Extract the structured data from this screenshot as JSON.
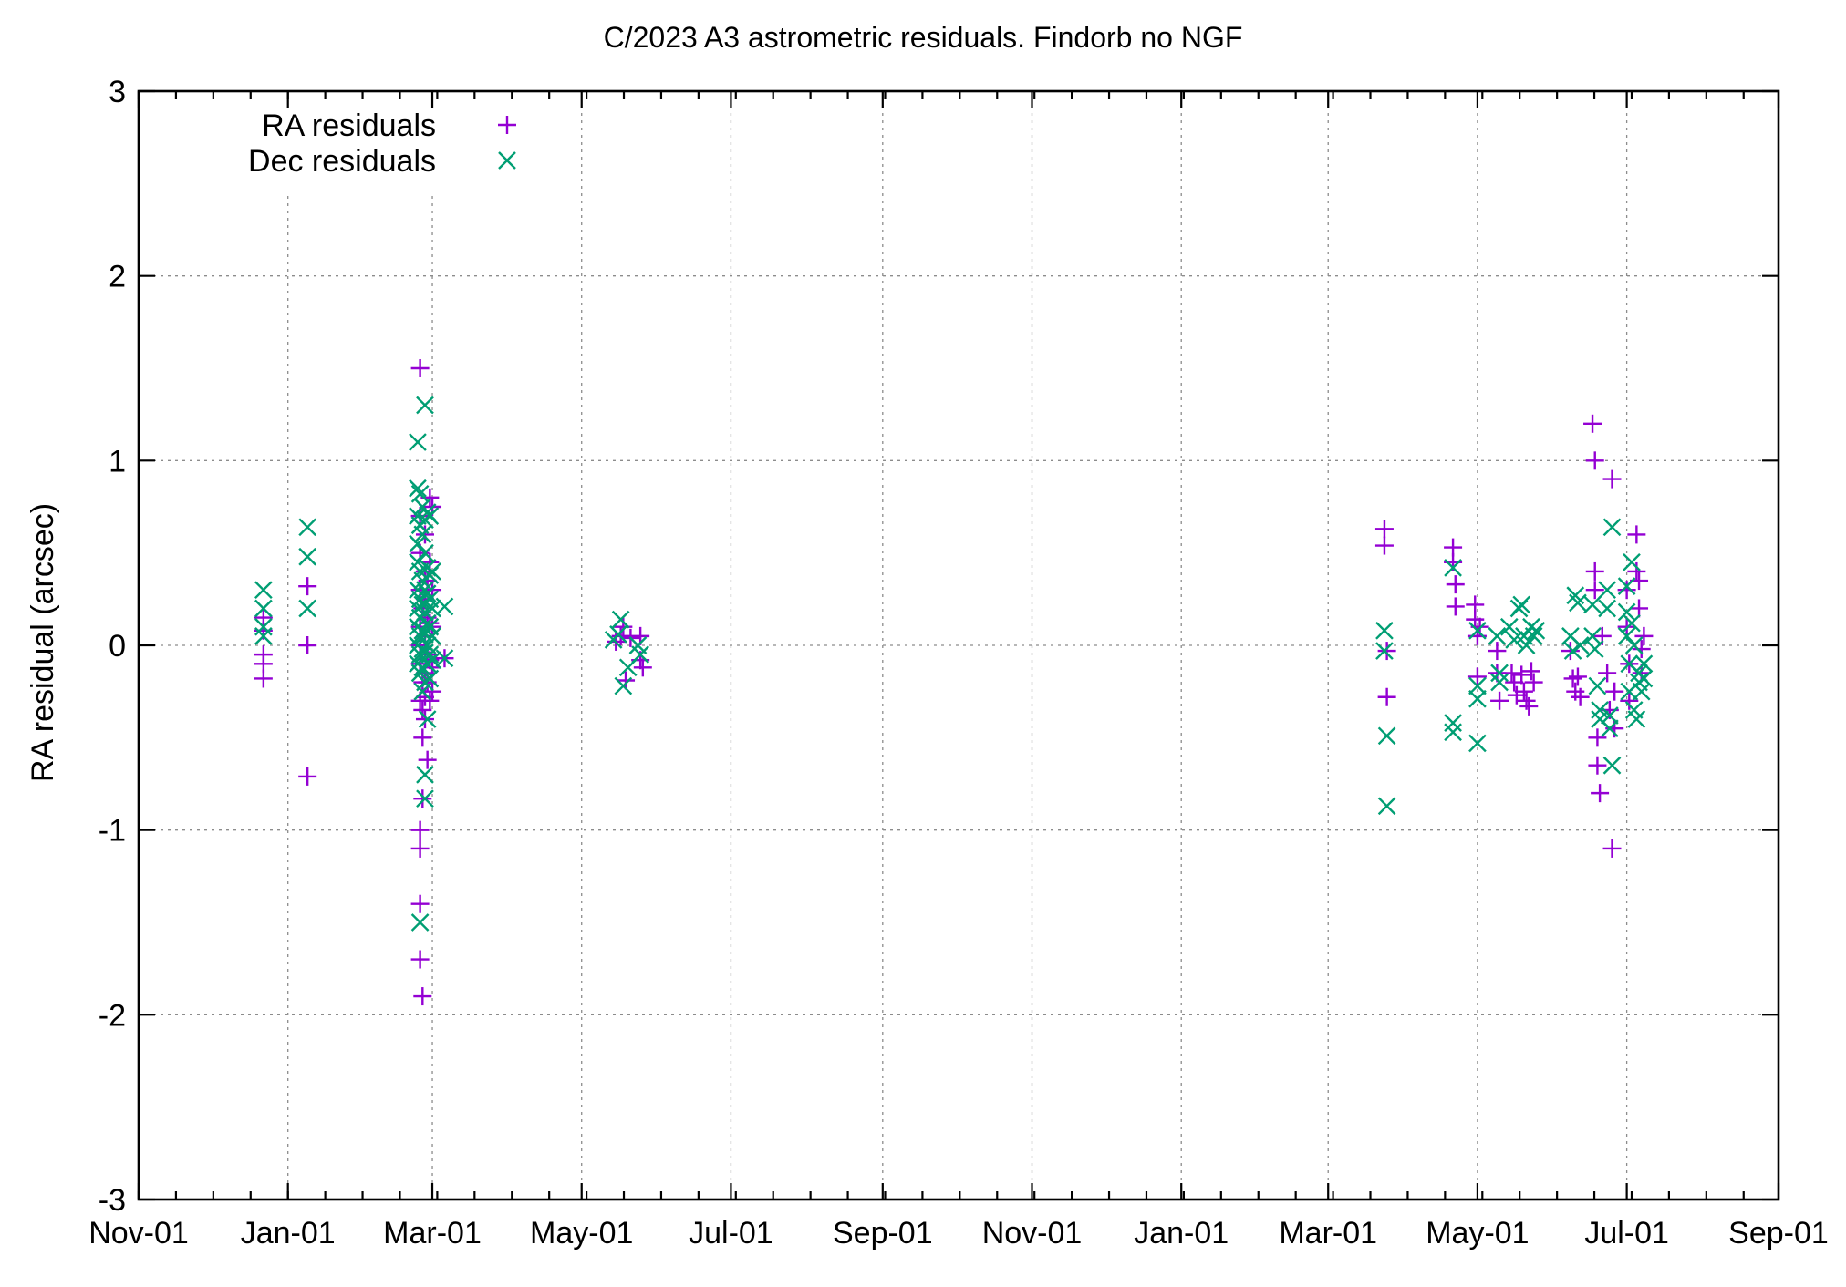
{
  "chart_data": {
    "type": "scatter",
    "title": "C/2023 A3 astrometric residuals. Findorb no NGF",
    "xlabel": "",
    "ylabel": "RA residual (arcsec)",
    "ylim": [
      -3,
      3
    ],
    "yticks": [
      "-3",
      "-2",
      "-1",
      "0",
      "1",
      "2",
      "3"
    ],
    "x_range_days": [
      0,
      670
    ],
    "xticks": [
      {
        "label": "Nov-01",
        "day": 0
      },
      {
        "label": "Jan-01",
        "day": 61
      },
      {
        "label": "Mar-01",
        "day": 120
      },
      {
        "label": "May-01",
        "day": 181
      },
      {
        "label": "Jul-01",
        "day": 242
      },
      {
        "label": "Sep-01",
        "day": 304
      },
      {
        "label": "Nov-01",
        "day": 365
      },
      {
        "label": "Jan-01",
        "day": 426
      },
      {
        "label": "Mar-01",
        "day": 486
      },
      {
        "label": "May-01",
        "day": 547
      },
      {
        "label": "Jul-01",
        "day": 608
      },
      {
        "label": "Sep-01",
        "day": 670
      }
    ],
    "grid": true,
    "legend_position": "top-left",
    "series": [
      {
        "name": "RA residuals",
        "marker": "plus",
        "color": "#9400d3",
        "points": [
          [
            51,
            0.15
          ],
          [
            51,
            0.08
          ],
          [
            51,
            -0.05
          ],
          [
            51,
            -0.1
          ],
          [
            51,
            -0.18
          ],
          [
            69,
            0.32
          ],
          [
            69,
            0.0
          ],
          [
            69,
            -0.71
          ],
          [
            115,
            1.5
          ],
          [
            115,
            0.7
          ],
          [
            115,
            0.5
          ],
          [
            115,
            0.3
          ],
          [
            115,
            0.1
          ],
          [
            115,
            0.0
          ],
          [
            115,
            -0.1
          ],
          [
            115,
            -0.3
          ],
          [
            115,
            -1.0
          ],
          [
            115,
            -1.1
          ],
          [
            115,
            -1.4
          ],
          [
            115,
            -1.7
          ],
          [
            116,
            0.2
          ],
          [
            116,
            -0.2
          ],
          [
            116,
            -0.35
          ],
          [
            116,
            -0.5
          ],
          [
            116,
            -0.83
          ],
          [
            116,
            -1.9
          ],
          [
            117,
            0.6
          ],
          [
            117,
            0.4
          ],
          [
            117,
            0.25
          ],
          [
            117,
            0.05
          ],
          [
            117,
            -0.15
          ],
          [
            117,
            -0.28
          ],
          [
            117,
            -0.4
          ],
          [
            118,
            0.35
          ],
          [
            118,
            0.15
          ],
          [
            118,
            -0.05
          ],
          [
            118,
            -0.2
          ],
          [
            118,
            -0.62
          ],
          [
            119,
            0.8
          ],
          [
            119,
            0.45
          ],
          [
            119,
            0.12
          ],
          [
            119,
            -0.08
          ],
          [
            119,
            -0.3
          ],
          [
            120,
            0.75
          ],
          [
            120,
            0.3
          ],
          [
            120,
            0.1
          ],
          [
            120,
            -0.12
          ],
          [
            120,
            -0.25
          ],
          [
            125,
            -0.07
          ],
          [
            195,
            0.02
          ],
          [
            197,
            0.05
          ],
          [
            198,
            0.1
          ],
          [
            199,
            -0.19
          ],
          [
            201,
            0.04
          ],
          [
            205,
            0.05
          ],
          [
            205,
            -0.08
          ],
          [
            206,
            -0.12
          ],
          [
            509,
            0.63
          ],
          [
            509,
            0.54
          ],
          [
            510,
            -0.03
          ],
          [
            510,
            -0.28
          ],
          [
            537,
            0.53
          ],
          [
            537,
            0.45
          ],
          [
            538,
            0.33
          ],
          [
            538,
            0.21
          ],
          [
            546,
            0.22
          ],
          [
            546,
            0.14
          ],
          [
            547,
            0.05
          ],
          [
            547,
            -0.17
          ],
          [
            548,
            0.1
          ],
          [
            555,
            -0.03
          ],
          [
            555,
            -0.15
          ],
          [
            556,
            -0.3
          ],
          [
            561,
            -0.15
          ],
          [
            562,
            -0.2
          ],
          [
            563,
            -0.27
          ],
          [
            565,
            -0.16
          ],
          [
            566,
            -0.25
          ],
          [
            567,
            -0.3
          ],
          [
            568,
            -0.33
          ],
          [
            569,
            -0.14
          ],
          [
            570,
            -0.2
          ],
          [
            585,
            -0.03
          ],
          [
            586,
            -0.18
          ],
          [
            587,
            -0.25
          ],
          [
            588,
            -0.17
          ],
          [
            589,
            -0.28
          ],
          [
            594,
            1.2
          ],
          [
            595,
            1.0
          ],
          [
            595,
            0.4
          ],
          [
            595,
            0.3
          ],
          [
            596,
            -0.5
          ],
          [
            596,
            -0.65
          ],
          [
            597,
            -0.8
          ],
          [
            598,
            0.05
          ],
          [
            600,
            -0.15
          ],
          [
            601,
            -0.35
          ],
          [
            602,
            -1.1
          ],
          [
            602,
            0.9
          ],
          [
            603,
            -0.25
          ],
          [
            603,
            -0.45
          ],
          [
            608,
            0.3
          ],
          [
            608,
            0.1
          ],
          [
            609,
            -0.1
          ],
          [
            609,
            -0.3
          ],
          [
            612,
            0.6
          ],
          [
            612,
            0.4
          ],
          [
            613,
            0.2
          ],
          [
            613,
            0.35
          ],
          [
            614,
            -0.02
          ],
          [
            614,
            -0.15
          ],
          [
            615,
            0.05
          ]
        ]
      },
      {
        "name": "Dec residuals",
        "marker": "cross",
        "color": "#009e73",
        "points": [
          [
            51,
            0.3
          ],
          [
            51,
            0.2
          ],
          [
            51,
            0.1
          ],
          [
            51,
            0.05
          ],
          [
            69,
            0.64
          ],
          [
            69,
            0.48
          ],
          [
            69,
            0.2
          ],
          [
            114,
            1.1
          ],
          [
            114,
            0.85
          ],
          [
            114,
            0.7
          ],
          [
            114,
            0.55
          ],
          [
            114,
            0.45
          ],
          [
            114,
            0.3
          ],
          [
            114,
            0.2
          ],
          [
            114,
            0.1
          ],
          [
            114,
            0.0
          ],
          [
            114,
            -0.1
          ],
          [
            115,
            0.82
          ],
          [
            115,
            0.65
          ],
          [
            115,
            0.4
          ],
          [
            115,
            0.25
          ],
          [
            115,
            0.15
          ],
          [
            115,
            0.05
          ],
          [
            115,
            -0.05
          ],
          [
            115,
            -0.15
          ],
          [
            115,
            -1.5
          ],
          [
            116,
            0.75
          ],
          [
            116,
            0.6
          ],
          [
            116,
            0.35
          ],
          [
            116,
            0.22
          ],
          [
            116,
            0.08
          ],
          [
            116,
            -0.02
          ],
          [
            116,
            -0.12
          ],
          [
            116,
            -0.25
          ],
          [
            117,
            1.3
          ],
          [
            117,
            0.68
          ],
          [
            117,
            0.5
          ],
          [
            117,
            0.3
          ],
          [
            117,
            0.18
          ],
          [
            117,
            0.06
          ],
          [
            117,
            -0.04
          ],
          [
            117,
            -0.2
          ],
          [
            117,
            -0.7
          ],
          [
            117,
            -0.83
          ],
          [
            118,
            0.72
          ],
          [
            118,
            0.42
          ],
          [
            118,
            0.28
          ],
          [
            118,
            0.12
          ],
          [
            118,
            0.0
          ],
          [
            118,
            -0.1
          ],
          [
            118,
            -0.4
          ],
          [
            119,
            0.7
          ],
          [
            119,
            0.38
          ],
          [
            119,
            0.25
          ],
          [
            119,
            0.1
          ],
          [
            119,
            -0.05
          ],
          [
            119,
            -0.18
          ],
          [
            120,
            0.4
          ],
          [
            120,
            0.2
          ],
          [
            120,
            0.05
          ],
          [
            120,
            -0.08
          ],
          [
            125,
            0.21
          ],
          [
            125,
            -0.07
          ],
          [
            194,
            0.03
          ],
          [
            196,
            0.06
          ],
          [
            197,
            0.14
          ],
          [
            198,
            -0.22
          ],
          [
            200,
            -0.12
          ],
          [
            204,
            0.0
          ],
          [
            205,
            -0.05
          ],
          [
            509,
            0.08
          ],
          [
            509,
            -0.03
          ],
          [
            510,
            -0.49
          ],
          [
            510,
            -0.87
          ],
          [
            537,
            0.42
          ],
          [
            537,
            -0.42
          ],
          [
            537,
            -0.47
          ],
          [
            547,
            0.08
          ],
          [
            547,
            -0.22
          ],
          [
            547,
            -0.29
          ],
          [
            547,
            -0.53
          ],
          [
            555,
            0.05
          ],
          [
            556,
            -0.15
          ],
          [
            556,
            -0.2
          ],
          [
            560,
            0.1
          ],
          [
            562,
            0.03
          ],
          [
            564,
            0.2
          ],
          [
            565,
            0.22
          ],
          [
            566,
            0.05
          ],
          [
            567,
            0.0
          ],
          [
            569,
            0.1
          ],
          [
            570,
            0.05
          ],
          [
            571,
            0.08
          ],
          [
            585,
            0.05
          ],
          [
            586,
            -0.03
          ],
          [
            587,
            0.27
          ],
          [
            588,
            0.23
          ],
          [
            589,
            0.0
          ],
          [
            594,
            0.22
          ],
          [
            594,
            0.05
          ],
          [
            595,
            -0.02
          ],
          [
            596,
            -0.22
          ],
          [
            597,
            -0.35
          ],
          [
            597,
            -0.4
          ],
          [
            600,
            0.3
          ],
          [
            600,
            0.2
          ],
          [
            601,
            -0.45
          ],
          [
            601,
            -0.38
          ],
          [
            602,
            0.64
          ],
          [
            602,
            -0.65
          ],
          [
            608,
            0.32
          ],
          [
            608,
            0.18
          ],
          [
            608,
            0.05
          ],
          [
            609,
            -0.1
          ],
          [
            609,
            -0.25
          ],
          [
            610,
            0.45
          ],
          [
            610,
            0.12
          ],
          [
            611,
            0.0
          ],
          [
            611,
            -0.35
          ],
          [
            612,
            -0.4
          ],
          [
            613,
            -0.15
          ],
          [
            613,
            -0.2
          ],
          [
            614,
            -0.25
          ],
          [
            615,
            -0.1
          ],
          [
            615,
            -0.18
          ]
        ]
      }
    ]
  }
}
